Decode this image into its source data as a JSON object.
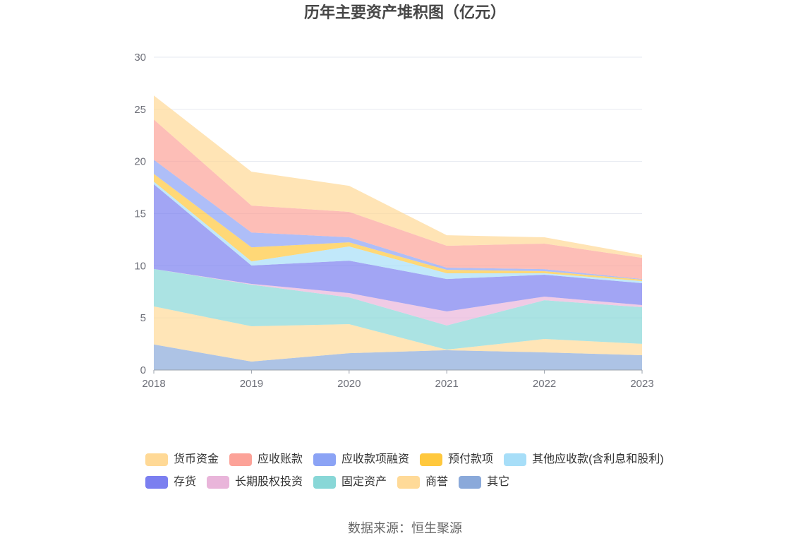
{
  "chart_data": {
    "type": "area",
    "stacked": true,
    "title": "历年主要资产堆积图（亿元）",
    "categories": [
      "2018",
      "2019",
      "2020",
      "2021",
      "2022",
      "2023"
    ],
    "ylim": [
      0,
      30
    ],
    "yticks": [
      0,
      5,
      10,
      15,
      20,
      25,
      30
    ],
    "grid": true,
    "legend_position": "bottom",
    "series": [
      {
        "name": "货币资金",
        "color": "#FFD996",
        "values": [
          2.3,
          3.25,
          2.5,
          1.01,
          0.61,
          0.28
        ]
      },
      {
        "name": "应收账款",
        "color": "#FCA298",
        "values": [
          3.86,
          2.58,
          2.44,
          2.1,
          2.44,
          2.03
        ]
      },
      {
        "name": "应收款项融资",
        "color": "#8BA3F5",
        "values": [
          1.36,
          1.42,
          0.48,
          0.21,
          0.2,
          0.06
        ]
      },
      {
        "name": "预付款项",
        "color": "#FFC83D",
        "values": [
          0.74,
          1.35,
          0.4,
          0.33,
          0.2,
          0.14
        ]
      },
      {
        "name": "其他应收款(含利息和股利)",
        "color": "#A7DEF8",
        "values": [
          0.25,
          0.4,
          1.36,
          0.55,
          0.14,
          0.2
        ]
      },
      {
        "name": "存货",
        "color": "#7B7FF0",
        "values": [
          8.13,
          1.76,
          3.11,
          3.11,
          2.1,
          2.1
        ]
      },
      {
        "name": "长期股权投资",
        "color": "#E9B5DA",
        "values": [
          0.0,
          0.07,
          0.41,
          1.35,
          0.34,
          0.2
        ]
      },
      {
        "name": "固定资产",
        "color": "#88D7D7",
        "values": [
          3.59,
          3.99,
          2.57,
          2.31,
          3.72,
          3.52
        ]
      },
      {
        "name": "商誉",
        "color": "#FFDA98",
        "values": [
          3.65,
          3.39,
          2.78,
          0.06,
          1.29,
          1.09
        ]
      },
      {
        "name": "其它",
        "color": "#8AA9DA",
        "values": [
          2.45,
          0.81,
          1.62,
          1.9,
          1.69,
          1.42
        ]
      }
    ]
  },
  "source": "数据来源：恒生聚源"
}
